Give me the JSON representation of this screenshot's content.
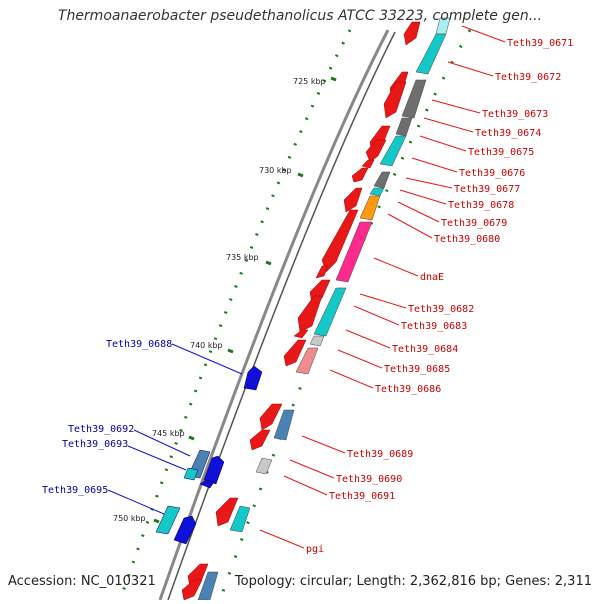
{
  "title": "Thermoanaerobacter pseudethanolicus ATCC 33223, complete gen...",
  "accession": "Accession: NC_010321",
  "topology": "Topology: circular; Length: 2,362,816 bp; Genes: 2,311",
  "colors": {
    "red": "#e81818",
    "cyan": "#14c8c8",
    "gray": "#6e6e6e",
    "orange": "#ff9a10",
    "magenta": "#ff2a8c",
    "lightgray": "#c8c8c8",
    "pink": "#f08c8c",
    "blue": "#1010d8",
    "steel": "#4a82b4",
    "lightcyan": "#a8f0f0",
    "label_red": "#cc0000",
    "label_blue": "#0000aa",
    "tick": "#1a7a1a"
  },
  "kbp_labels": [
    "725 kbp",
    "730 kbp",
    "735 kbp",
    "740 kbp",
    "745 kbp",
    "750 kbp"
  ],
  "right_labels": [
    "Teth39_0671",
    "Teth39_0672",
    "Teth39_0673",
    "Teth39_0674",
    "Teth39_0675",
    "Teth39_0676",
    "Teth39_0677",
    "Teth39_0678",
    "Teth39_0679",
    "Teth39_0680",
    "dnaE",
    "Teth39_0682",
    "Teth39_0683",
    "Teth39_0684",
    "Teth39_0685",
    "Teth39_0686",
    "Teth39_0689",
    "Teth39_0690",
    "Teth39_0691",
    "pgi"
  ],
  "left_labels": [
    "Teth39_0688",
    "Teth39_0692",
    "Teth39_0693",
    "Teth39_0695"
  ]
}
